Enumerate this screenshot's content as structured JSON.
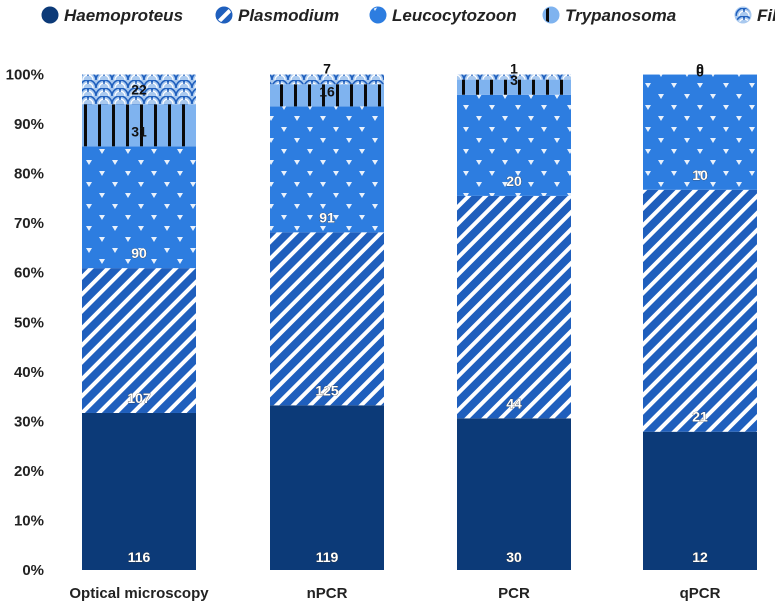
{
  "chart_data": {
    "type": "bar",
    "stacked": true,
    "normalized": true,
    "categories": [
      "Optical microscopy",
      "nPCR",
      "PCR",
      "qPCR"
    ],
    "series": [
      {
        "name": "Haemoproteus",
        "values": [
          116,
          119,
          30,
          12
        ],
        "color": "#0c3a78",
        "pattern": "solid"
      },
      {
        "name": "Plasmodium",
        "values": [
          107,
          125,
          44,
          21
        ],
        "color": "#1f5fbd",
        "pattern": "diagonal-stripes"
      },
      {
        "name": "Leucocytozoon",
        "values": [
          90,
          91,
          20,
          10
        ],
        "color": "#2d7de0",
        "pattern": "triangles"
      },
      {
        "name": "Trypanosoma",
        "values": [
          31,
          16,
          3,
          0
        ],
        "color": "#7fb3ef",
        "pattern": "vertical-lines"
      },
      {
        "name": "Filariae",
        "values": [
          22,
          7,
          1,
          0
        ],
        "color": "#a9c9ef",
        "pattern": "scales"
      }
    ],
    "yticks": [
      "0%",
      "10%",
      "20%",
      "30%",
      "40%",
      "50%",
      "60%",
      "70%",
      "80%",
      "90%",
      "100%"
    ],
    "ylim": [
      0,
      100
    ],
    "grid": false,
    "legend": "top",
    "xlabel": "",
    "ylabel": ""
  }
}
